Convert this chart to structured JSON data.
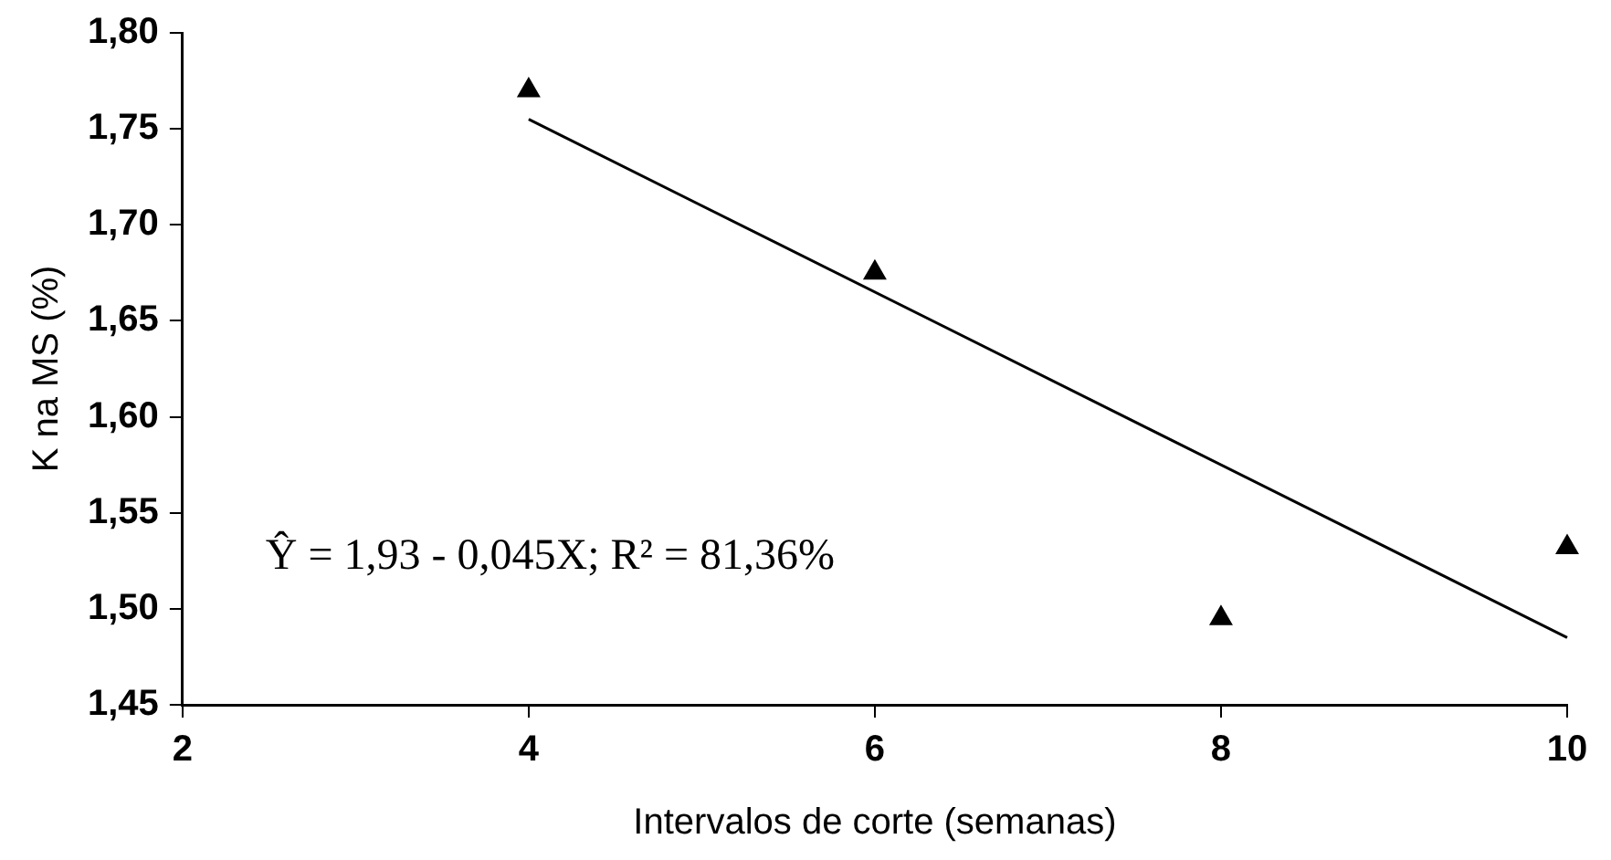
{
  "chart_data": {
    "type": "scatter",
    "xlabel": "Intervalos de corte (semanas)",
    "ylabel": "K na MS (%)",
    "x": [
      4,
      6,
      8,
      10
    ],
    "series": [
      {
        "type": "scatter",
        "color": "#000000",
        "marker": "triangle",
        "values": [
          1.77,
          1.675,
          1.495,
          1.532
        ]
      },
      {
        "type": "line",
        "color": "#000000",
        "marker": "none",
        "line_style": "solid",
        "x": [
          4,
          10
        ],
        "values": [
          1.755,
          1.485
        ]
      }
    ],
    "xlim": [
      2,
      10
    ],
    "xticks": [
      2,
      4,
      6,
      8,
      10
    ],
    "ylim": [
      1.45,
      1.8
    ],
    "yticks": [
      {
        "value": 1.45,
        "label": "1,45"
      },
      {
        "value": 1.5,
        "label": "1,50"
      },
      {
        "value": 1.55,
        "label": "1,55"
      },
      {
        "value": 1.6,
        "label": "1,60"
      },
      {
        "value": 1.65,
        "label": "1,65"
      },
      {
        "value": 1.7,
        "label": "1,70"
      },
      {
        "value": 1.75,
        "label": "1,75"
      },
      {
        "value": 1.8,
        "label": "1,80"
      }
    ],
    "annotations": [
      "Ŷ = 1,93 - 0,045X; R² = 81,36%"
    ],
    "grid": false,
    "legend": false
  }
}
